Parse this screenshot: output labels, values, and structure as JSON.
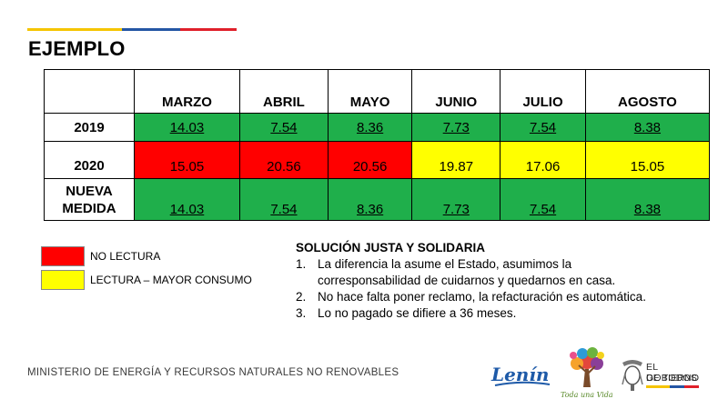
{
  "slide": {
    "title": "EJEMPLO",
    "colors": {
      "flag_yellow": "#f5c400",
      "flag_blue": "#2456a4",
      "flag_red": "#e0202a",
      "red": "#ff0000",
      "yellow": "#ffff00",
      "green": "#1faf4b"
    }
  },
  "table": {
    "corner": "",
    "months": [
      "MARZO",
      "ABRIL",
      "MAYO",
      "JUNIO",
      "JULIO",
      "AGOSTO"
    ],
    "rows": [
      {
        "label": "2019",
        "values": [
          "14.03",
          "7.54",
          "8.36",
          "7.73",
          "7.54",
          "8.38"
        ],
        "cell_colors": [
          "green",
          "green",
          "green",
          "green",
          "green",
          "green"
        ]
      },
      {
        "label": "2020",
        "values": [
          "15.05",
          "20.56",
          "20.56",
          "19.87",
          "17.06",
          "15.05"
        ],
        "cell_colors": [
          "red",
          "red",
          "red",
          "yellow",
          "yellow",
          "yellow"
        ]
      },
      {
        "label_line1": "NUEVA",
        "label_line2": "MEDIDA",
        "values": [
          "14.03",
          "7.54",
          "8.36",
          "7.73",
          "7.54",
          "8.38"
        ],
        "cell_colors": [
          "green",
          "green",
          "green",
          "green",
          "green",
          "green"
        ]
      }
    ]
  },
  "legend": {
    "items": [
      {
        "color": "#ff0000",
        "label": "NO LECTURA"
      },
      {
        "color": "#ffff00",
        "label": "LECTURA – MAYOR CONSUMO"
      }
    ]
  },
  "solution": {
    "heading": "SOLUCIÓN JUSTA Y SOLIDARIA",
    "items": [
      {
        "num": "1.",
        "line1": "La diferencia la asume el Estado, asumimos la",
        "line2": "corresponsabilidad de cuidarnos y quedarnos en casa."
      },
      {
        "num": "2.",
        "line1": "No hace falta poner reclamo, la refacturación es automática."
      },
      {
        "num": "3.",
        "line1": "Lo no pagado se difiere a 36 meses."
      }
    ]
  },
  "footer": {
    "ministry": "MINISTERIO DE ENERGÍA Y RECURSOS NATURALES NO RENOVABLES",
    "logo_lenin": "Lenín",
    "logo_tree_caption": "Toda una Vida",
    "logo_gob_line1": "EL GOBIERNO",
    "logo_gob_line2": "DE TODOS"
  }
}
